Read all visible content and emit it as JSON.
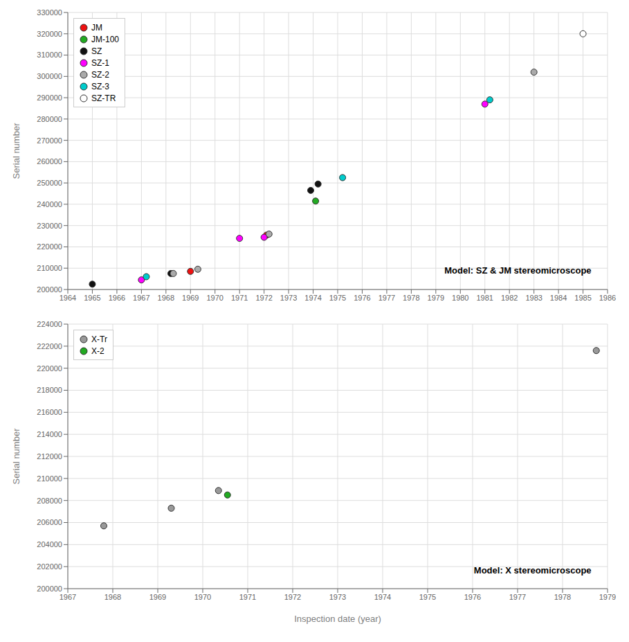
{
  "chart_data": [
    {
      "type": "scatter",
      "title": "Model: SZ & JM stereomicroscope",
      "ylabel": "Serial number",
      "xlim": [
        1964,
        1986
      ],
      "ylim": [
        200000,
        330000
      ],
      "xticks": [
        1964,
        1965,
        1966,
        1967,
        1968,
        1969,
        1970,
        1971,
        1972,
        1973,
        1974,
        1975,
        1976,
        1977,
        1978,
        1979,
        1980,
        1981,
        1982,
        1983,
        1984,
        1985,
        1986
      ],
      "yticks": [
        200000,
        210000,
        220000,
        230000,
        240000,
        250000,
        260000,
        270000,
        280000,
        290000,
        300000,
        310000,
        320000,
        330000
      ],
      "grid": true,
      "legend": "upper left",
      "series": [
        {
          "name": "JM",
          "color": "#ee1111",
          "x": [
            1972.1,
            1969.0
          ],
          "values": [
            225500,
            208500
          ]
        },
        {
          "name": "JM-100",
          "color": "#22aa22",
          "x": [
            1974.1
          ],
          "values": [
            241500
          ]
        },
        {
          "name": "SZ",
          "color": "#111111",
          "x": [
            1965.0,
            1968.2,
            1973.9,
            1974.2
          ],
          "values": [
            202500,
            207500,
            246500,
            249500
          ]
        },
        {
          "name": "SZ-1",
          "color": "#ff00ff",
          "x": [
            1967.0,
            1971.0,
            1972.0,
            1981.0
          ],
          "values": [
            204500,
            224000,
            224500,
            287000
          ]
        },
        {
          "name": "SZ-2",
          "color": "#aaaaaa",
          "x": [
            1968.3,
            1969.3,
            1972.2,
            1983.0
          ],
          "values": [
            207500,
            209500,
            226000,
            302000
          ]
        },
        {
          "name": "SZ-3",
          "color": "#00cccc",
          "x": [
            1967.2,
            1975.2,
            1981.2
          ],
          "values": [
            206000,
            252500,
            289000
          ]
        },
        {
          "name": "SZ-TR",
          "color": "#ffffff",
          "x": [
            1985.0
          ],
          "values": [
            320000
          ]
        }
      ]
    },
    {
      "type": "scatter",
      "title": "Model: X stereomicroscope",
      "xlabel": "Inspection date (year)",
      "ylabel": "Serial number",
      "xlim": [
        1967,
        1979
      ],
      "ylim": [
        200000,
        224000
      ],
      "xticks": [
        1967,
        1968,
        1969,
        1970,
        1971,
        1972,
        1973,
        1974,
        1975,
        1976,
        1977,
        1978,
        1979
      ],
      "yticks": [
        200000,
        202000,
        204000,
        206000,
        208000,
        210000,
        212000,
        214000,
        216000,
        218000,
        220000,
        222000,
        224000
      ],
      "grid": true,
      "legend": "upper left",
      "series": [
        {
          "name": "X-Tr",
          "color": "#999999",
          "x": [
            1967.8,
            1969.3,
            1970.35,
            1978.75
          ],
          "values": [
            205700,
            207300,
            208900,
            221600
          ]
        },
        {
          "name": "X-2",
          "color": "#22aa22",
          "x": [
            1970.55
          ],
          "values": [
            208500
          ]
        }
      ]
    }
  ]
}
